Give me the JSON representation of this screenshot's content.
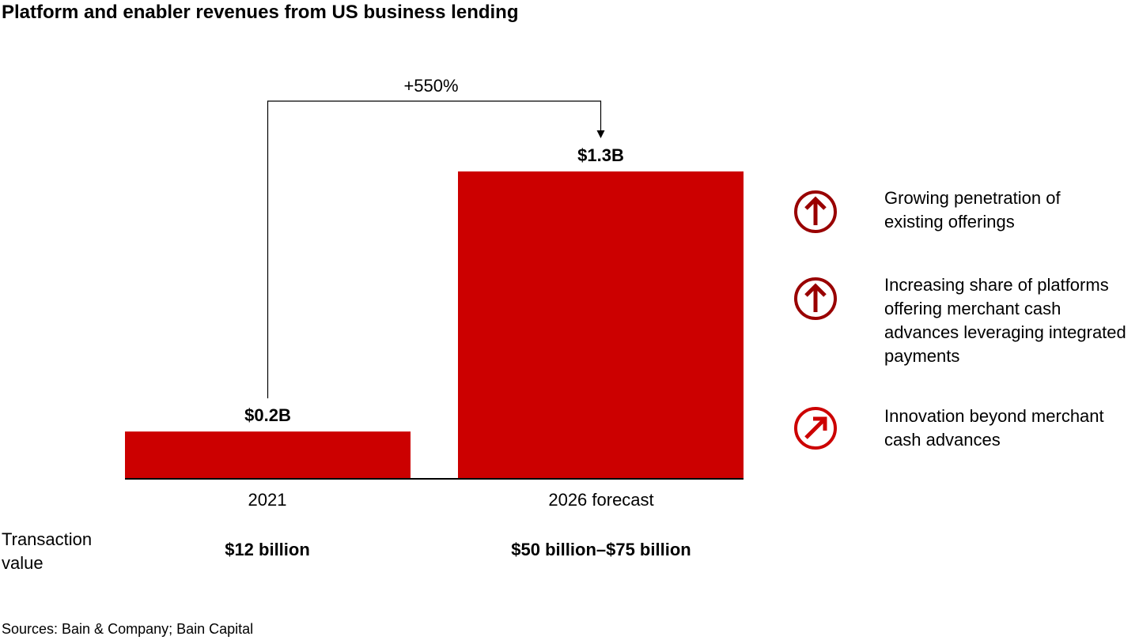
{
  "chart_data": {
    "type": "bar",
    "title": "Platform and enabler revenues from US business lending",
    "categories": [
      "2021",
      "2026 forecast"
    ],
    "values": [
      0.2,
      1.3
    ],
    "data_labels": [
      "$0.2B",
      "$1.3B"
    ],
    "unit": "$B",
    "ylim": [
      0,
      1.3
    ],
    "bar_color": "#cc0000",
    "growth_annotation": "+550%",
    "grid": false
  },
  "transaction_value": {
    "label": "Transaction value",
    "values": [
      "$12 billion",
      "$50 billion–$75 billion"
    ]
  },
  "drivers": [
    {
      "icon": "arrow-up-circle-icon",
      "color": "#990000",
      "text": "Growing penetration of existing offerings"
    },
    {
      "icon": "arrow-up-circle-icon",
      "color": "#990000",
      "text": "Increasing share of platforms offering merchant cash advances leveraging integrated payments"
    },
    {
      "icon": "arrow-up-right-circle-icon",
      "color": "#cc0000",
      "text": "Innovation beyond merchant cash advances"
    }
  ],
  "source": "Sources: Bain & Company; Bain Capital"
}
